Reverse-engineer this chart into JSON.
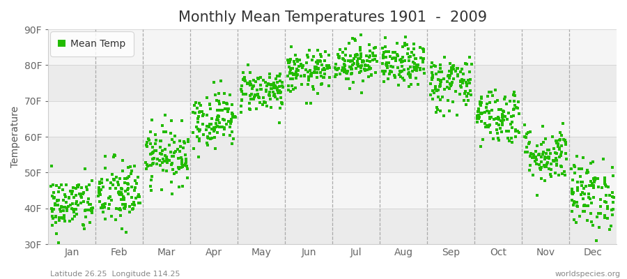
{
  "title": "Monthly Mean Temperatures 1901  -  2009",
  "ylabel": "Temperature",
  "xlabel_bottom": "Latitude 26.25  Longitude 114.25",
  "watermark": "worldspecies.org",
  "legend_label": "Mean Temp",
  "dot_color": "#22bb00",
  "fig_bg_color": "#ffffff",
  "plot_bg_color": "#f0f0f0",
  "band_colors": [
    "#ebebeb",
    "#f5f5f5"
  ],
  "ylim": [
    30,
    90
  ],
  "yticks": [
    30,
    40,
    50,
    60,
    70,
    80,
    90
  ],
  "ytick_labels": [
    "30F",
    "40F",
    "50F",
    "60F",
    "70F",
    "80F",
    "90F"
  ],
  "months": [
    "Jan",
    "Feb",
    "Mar",
    "Apr",
    "May",
    "Jun",
    "Jul",
    "Aug",
    "Sep",
    "Oct",
    "Nov",
    "Dec"
  ],
  "month_means_F": [
    41,
    44,
    55,
    65,
    73,
    78,
    81,
    80,
    75,
    66,
    55,
    44
  ],
  "month_spreads_F": [
    4,
    5,
    4,
    4,
    3,
    3,
    3,
    3,
    4,
    4,
    4,
    5
  ],
  "n_years": 109,
  "title_fontsize": 15,
  "axis_fontsize": 10,
  "tick_fontsize": 10,
  "marker_size": 9
}
